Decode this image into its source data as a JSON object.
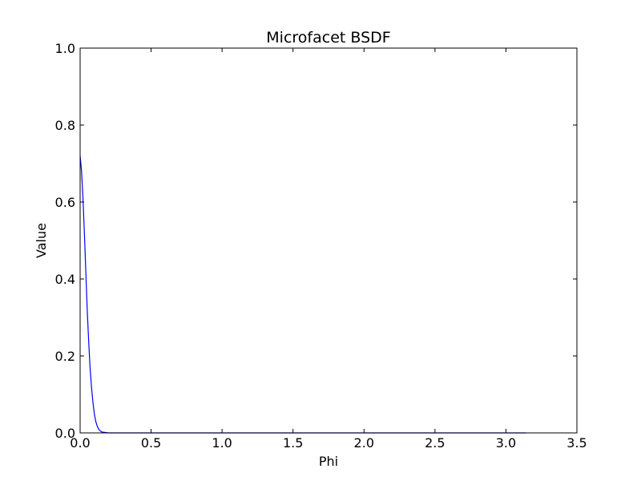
{
  "chart_data": {
    "type": "line",
    "title": "Microfacet BSDF",
    "xlabel": "Phi",
    "ylabel": "Value",
    "xlim": [
      0.0,
      3.5
    ],
    "ylim": [
      0.0,
      1.0
    ],
    "xticks": [
      0.0,
      0.5,
      1.0,
      1.5,
      2.0,
      2.5,
      3.0,
      3.5
    ],
    "xtick_labels": [
      "0.0",
      "0.5",
      "1.0",
      "1.5",
      "2.0",
      "2.5",
      "3.0",
      "3.5"
    ],
    "yticks": [
      0.0,
      0.2,
      0.4,
      0.6,
      0.8,
      1.0
    ],
    "ytick_labels": [
      "0.0",
      "0.2",
      "0.4",
      "0.6",
      "0.8",
      "1.0"
    ],
    "grid": false,
    "legend": "none",
    "series": [
      {
        "color": "#0000ff",
        "x": [
          0.0,
          0.01,
          0.02,
          0.03,
          0.04,
          0.05,
          0.06,
          0.07,
          0.08,
          0.09,
          0.1,
          0.11,
          0.12,
          0.13,
          0.14,
          0.15,
          0.16,
          0.18,
          0.2,
          0.3,
          0.5,
          1.0,
          1.5,
          2.0,
          2.5,
          3.0,
          3.14
        ],
        "y": [
          0.72,
          0.68,
          0.61,
          0.52,
          0.42,
          0.32,
          0.24,
          0.17,
          0.12,
          0.08,
          0.05,
          0.03,
          0.018,
          0.01,
          0.006,
          0.003,
          0.002,
          0.001,
          0.0,
          0.0,
          0.0,
          0.0,
          0.0,
          0.0,
          0.0,
          0.0,
          0.0
        ]
      }
    ]
  }
}
